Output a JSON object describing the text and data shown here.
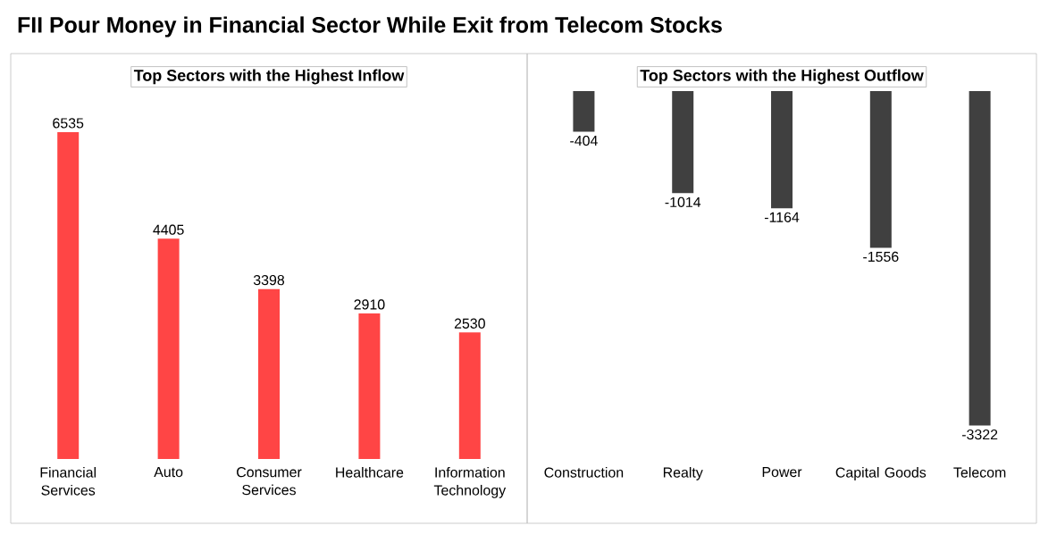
{
  "chart_data": [
    {
      "type": "bar",
      "title": "FII Pour Money in Financial Sector While Exit from Telecom Stocks",
      "subtitle": "Top Sectors with the Highest Inflow",
      "categories": [
        "Financial Services",
        "Auto",
        "Consumer Services",
        "Healthcare",
        "Information Technology"
      ],
      "values": [
        6535,
        4405,
        3398,
        2910,
        2530
      ],
      "color": "#ff4545",
      "data_labels": true
    },
    {
      "type": "bar",
      "title": "Top Sectors with the Highest Outflow",
      "categories": [
        "Construction",
        "Realty",
        "Power",
        "Capital Goods",
        "Telecom"
      ],
      "values": [
        -404,
        -1014,
        -1164,
        -1556,
        -3322
      ],
      "color": "#404040",
      "data_labels": true
    }
  ]
}
